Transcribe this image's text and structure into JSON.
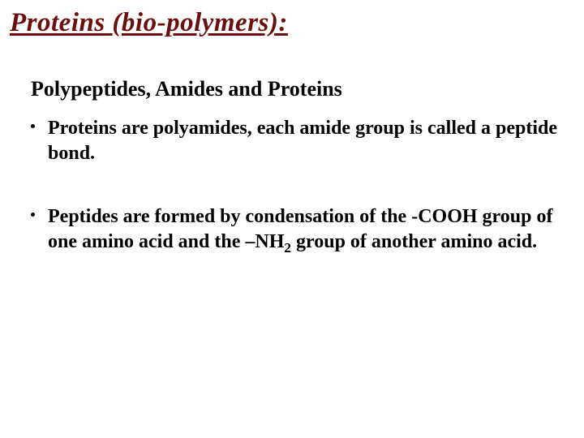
{
  "title": {
    "text": "Proteins (bio-polymers):",
    "color": "#6b0e0e",
    "fontsize": 33
  },
  "section_heading": {
    "text": "Polypeptides, Amides and Proteins",
    "fontsize": 26
  },
  "bullets": [
    {
      "text": "Proteins are polyamides, each amide group is called a peptide bond.",
      "fontsize": 24
    },
    {
      "pre": "Peptides are formed by condensation of the -COOH group of one amino acid and the –NH",
      "sub": "2",
      "post": " group of another amino acid.",
      "fontsize": 24
    }
  ]
}
